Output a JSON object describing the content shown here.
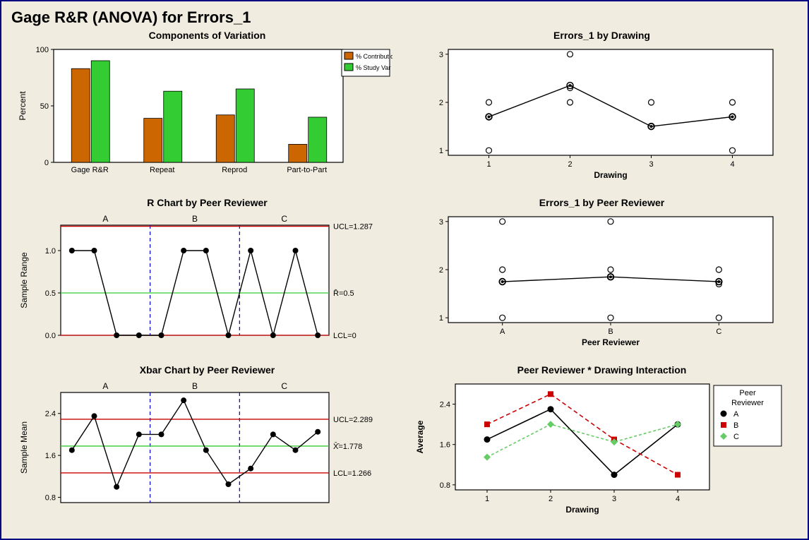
{
  "main_title": "Gage R&R (ANOVA) for Errors_1",
  "colors": {
    "bg": "#f0ece0",
    "border": "#000080",
    "plot_bg": "#ffffff",
    "plot_border": "#000000",
    "text": "#000000",
    "orange": "#cc6600",
    "green": "#33cc33",
    "red": "#cc0000",
    "blue_dash": "#0000cc",
    "line": "#000000",
    "green_line": "#33cc33",
    "red_marker": "#cc0000",
    "green_marker": "#66cc66"
  },
  "panels": {
    "components": {
      "title": "Components of Variation",
      "ylabel": "Percent",
      "ylim": [
        0,
        100
      ],
      "yticks": [
        0,
        50,
        100
      ],
      "categories": [
        "Gage R&R",
        "Repeat",
        "Reprod",
        "Part-to-Part"
      ],
      "series": [
        {
          "name": "% Contribution",
          "color": "#cc6600",
          "values": [
            83,
            39,
            42,
            16
          ]
        },
        {
          "name": "% Study Var",
          "color": "#33cc33",
          "values": [
            90,
            63,
            65,
            40
          ]
        }
      ]
    },
    "rchart": {
      "title": "R Chart by Peer Reviewer",
      "ylabel": "Sample Range",
      "ylim": [
        0,
        1.3
      ],
      "yticks": [
        0.0,
        0.5,
        1.0
      ],
      "groups": [
        "A",
        "B",
        "C"
      ],
      "values_per_group": [
        [
          1.0,
          1.0,
          0.0,
          0.0
        ],
        [
          0.0,
          1.0,
          1.0,
          0.0
        ],
        [
          1.0,
          0.0,
          1.0,
          0.0
        ]
      ],
      "ucl": {
        "value": 1.287,
        "label": "UCL=1.287",
        "color": "#cc0000"
      },
      "center": {
        "value": 0.5,
        "label": "R̄=0.5",
        "color": "#33cc33"
      },
      "lcl": {
        "value": 0,
        "label": "LCL=0",
        "color": "#cc0000"
      }
    },
    "xbarchart": {
      "title": "Xbar Chart by Peer Reviewer",
      "ylabel": "Sample Mean",
      "ylim": [
        0.7,
        2.8
      ],
      "yticks": [
        0.8,
        1.6,
        2.4
      ],
      "groups": [
        "A",
        "B",
        "C"
      ],
      "values_per_group": [
        [
          1.7,
          2.35,
          1.0,
          2.0
        ],
        [
          2.0,
          2.65,
          1.7,
          1.05
        ],
        [
          1.35,
          2.0,
          1.7,
          2.05
        ]
      ],
      "ucl": {
        "value": 2.289,
        "label": "UCL=2.289",
        "color": "#cc0000"
      },
      "center": {
        "value": 1.778,
        "label": "X̄̄=1.778",
        "color": "#33cc33"
      },
      "lcl": {
        "value": 1.266,
        "label": "LCL=1.266",
        "color": "#cc0000"
      }
    },
    "by_drawing": {
      "title": "Errors_1 by Drawing",
      "xlabel": "Drawing",
      "xvals": [
        1,
        2,
        3,
        4
      ],
      "ylim": [
        0.9,
        3.1
      ],
      "yticks": [
        1,
        2,
        3
      ],
      "scatter": {
        "1": [
          1.0,
          2.0,
          1.7
        ],
        "2": [
          2.3,
          2.0,
          3.0
        ],
        "3": [
          1.5,
          2.0
        ],
        "4": [
          1.0,
          1.7,
          2.0
        ]
      },
      "means": [
        1.7,
        2.35,
        1.5,
        1.7
      ]
    },
    "by_reviewer": {
      "title": "Errors_1 by Peer Reviewer",
      "xlabel": "Peer Reviewer",
      "xvals": [
        "A",
        "B",
        "C"
      ],
      "ylim": [
        0.9,
        3.1
      ],
      "yticks": [
        1,
        2,
        3
      ],
      "scatter": {
        "A": [
          1.0,
          2.0,
          3.0,
          1.75
        ],
        "B": [
          1.0,
          2.0,
          3.0,
          1.85
        ],
        "C": [
          1.0,
          2.0,
          1.7,
          1.75
        ]
      },
      "means": [
        1.75,
        1.85,
        1.75
      ]
    },
    "interaction": {
      "title": "Peer Reviewer * Drawing Interaction",
      "xlabel": "Drawing",
      "ylabel": "Average",
      "xvals": [
        1,
        2,
        3,
        4
      ],
      "ylim": [
        0.7,
        2.8
      ],
      "yticks": [
        0.8,
        1.6,
        2.4
      ],
      "legend_title": "Peer Reviewer",
      "series": [
        {
          "name": "A",
          "color": "#000000",
          "marker": "circle",
          "dash": "solid",
          "values": [
            1.7,
            2.3,
            1.0,
            2.0
          ]
        },
        {
          "name": "B",
          "color": "#cc0000",
          "marker": "square",
          "dash": "6,4",
          "values": [
            2.0,
            2.6,
            1.7,
            1.0
          ]
        },
        {
          "name": "C",
          "color": "#66cc66",
          "marker": "diamond",
          "dash": "4,3",
          "values": [
            1.35,
            2.0,
            1.65,
            2.0
          ]
        }
      ]
    }
  }
}
